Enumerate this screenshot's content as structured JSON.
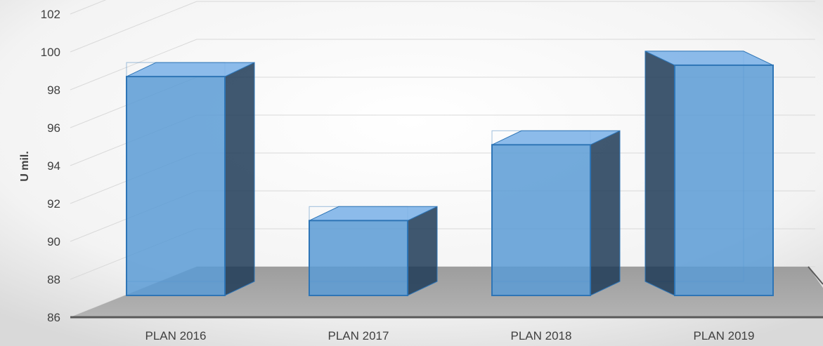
{
  "chart_data": {
    "type": "bar",
    "style": "3d-column",
    "title": "",
    "xlabel": "",
    "ylabel": "U mil.",
    "categories": [
      "PLAN 2016",
      "PLAN 2017",
      "PLAN 2018",
      "PLAN 2019"
    ],
    "values": [
      98.7,
      91.1,
      95.1,
      99.3
    ],
    "ylim": [
      86,
      102
    ],
    "yticks": [
      "86",
      "88",
      "90",
      "92",
      "94",
      "96",
      "98",
      "100",
      "102"
    ],
    "grid": true,
    "legend": "none",
    "colors": {
      "bar_front": "#5b9bd5",
      "bar_top": "#7fb4e8",
      "bar_side": "#1f3b57",
      "bar_outline": "#2e75b6",
      "floor": "#a6a6a6",
      "gridline": "#d9d9d9",
      "tick_text": "#404040"
    }
  }
}
